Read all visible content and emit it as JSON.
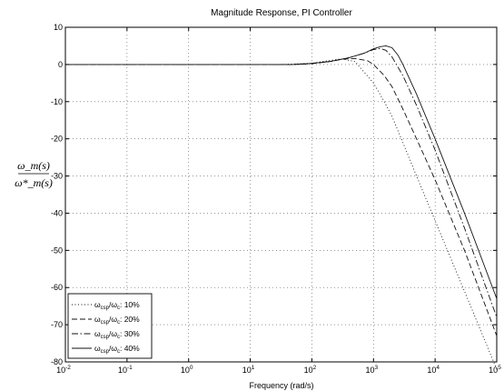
{
  "chart_data": {
    "type": "line",
    "title": "Magnitude Response, PI Controller",
    "xlabel": "Frequency (rad/s)",
    "ylabel_numerator": "ω_m(s)",
    "ylabel_denominator": "ω*_m(s)",
    "x_scale": "log",
    "xlim": [
      0.01,
      100000
    ],
    "ylim": [
      -80,
      10
    ],
    "grid": true,
    "legend_position": "bottom-left",
    "x_ticks": [
      {
        "value": 0.01,
        "label": "10-2"
      },
      {
        "value": 0.1,
        "label": "10-1"
      },
      {
        "value": 1,
        "label": "100"
      },
      {
        "value": 10,
        "label": "101"
      },
      {
        "value": 100,
        "label": "102"
      },
      {
        "value": 1000,
        "label": "103"
      },
      {
        "value": 10000,
        "label": "104"
      },
      {
        "value": 100000,
        "label": "105"
      }
    ],
    "y_ticks": [
      {
        "value": 10,
        "label": "10"
      },
      {
        "value": 0,
        "label": "0"
      },
      {
        "value": -10,
        "label": "-10"
      },
      {
        "value": -20,
        "label": "-20"
      },
      {
        "value": -30,
        "label": "-30"
      },
      {
        "value": -40,
        "label": "-40"
      },
      {
        "value": -50,
        "label": "-50"
      },
      {
        "value": -60,
        "label": "-60"
      },
      {
        "value": -70,
        "label": "-70"
      },
      {
        "value": -80,
        "label": "-80"
      }
    ],
    "series": [
      {
        "name": "ω_csp/ω_c: 10%",
        "label_main": "ω",
        "label_sub1": "csp",
        "label_sub2": "c",
        "label_value": ": 10%",
        "dash": "1,2.5",
        "x": [
          0.01,
          1,
          10,
          30,
          100,
          150,
          300,
          500,
          700,
          1000,
          1500,
          2000,
          3000,
          5000,
          10000,
          30000,
          100000
        ],
        "y": [
          0,
          0,
          0,
          0,
          0.3,
          0.8,
          1.5,
          0.8,
          -2,
          -5,
          -10,
          -14,
          -21,
          -30,
          -42,
          -61,
          -82
        ]
      },
      {
        "name": "ω_csp/ω_c: 20%",
        "label_main": "ω",
        "label_sub1": "csp",
        "label_sub2": "c",
        "label_value": ": 20%",
        "dash": "6,3",
        "x": [
          0.01,
          1,
          10,
          50,
          100,
          200,
          300,
          500,
          800,
          1000,
          1500,
          2000,
          3000,
          5000,
          10000,
          30000,
          100000
        ],
        "y": [
          0,
          0,
          0,
          0,
          0.2,
          0.8,
          1.4,
          1.6,
          1,
          0,
          -3,
          -6,
          -12,
          -20,
          -31,
          -50,
          -73
        ]
      },
      {
        "name": "ω_csp/ω_c: 30%",
        "label_main": "ω",
        "label_sub1": "csp",
        "label_sub2": "c",
        "label_value": ": 30%",
        "dash": "7,2.5,1.5,2.5",
        "x": [
          0.01,
          1,
          10,
          50,
          100,
          200,
          400,
          700,
          1000,
          1300,
          1600,
          2000,
          3000,
          5000,
          10000,
          30000,
          100000
        ],
        "y": [
          0,
          0,
          0,
          0,
          0.3,
          0.8,
          1.8,
          3,
          4,
          4.3,
          3.8,
          2,
          -3,
          -11,
          -23,
          -44,
          -68
        ]
      },
      {
        "name": "ω_csp/ω_c: 40%",
        "label_main": "ω",
        "label_sub1": "csp",
        "label_sub2": "c",
        "label_value": ": 40%",
        "dash": "",
        "x": [
          0.01,
          1,
          10,
          50,
          100,
          200,
          400,
          700,
          1000,
          1300,
          1600,
          2000,
          2500,
          3000,
          5000,
          10000,
          30000,
          100000
        ],
        "y": [
          0,
          0,
          0,
          0,
          0.3,
          0.8,
          1.8,
          3,
          4.2,
          4.8,
          5,
          4.5,
          2.5,
          0,
          -8,
          -20,
          -40,
          -63
        ]
      }
    ]
  }
}
